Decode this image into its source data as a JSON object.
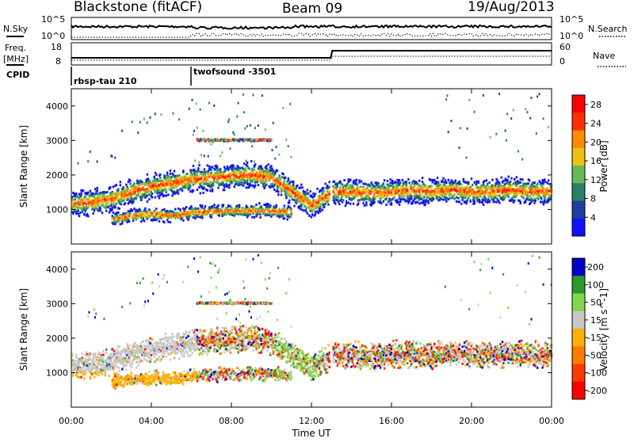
{
  "header": {
    "station": "Blackstone (fitACF)",
    "beam": "Beam 09",
    "date": "19/Aug/2013"
  },
  "top_panels": {
    "nsky_label": "N.Sky",
    "nsearch_label": "N.Search",
    "freq_label": "Freq.",
    "freq_unit": "[MHz]",
    "nave_label": "Nave",
    "cpid_label": "CPID",
    "noise_ticks": [
      "10^5",
      "10^0"
    ],
    "noise_right_ticks": [
      "10^5",
      "10^0"
    ],
    "freq_ticks": [
      "18",
      "8"
    ],
    "nave_ticks": [
      "60",
      "0"
    ],
    "cpid_segments": [
      {
        "label": "rbsp-tau 210",
        "start_hour": 0.0
      },
      {
        "label": "twofsound -3501",
        "start_hour": 6.0
      }
    ]
  },
  "chart_data": [
    {
      "type": "heatmap",
      "title": "",
      "xlabel": "Time UT",
      "ylabel": "Slant Range [km]",
      "xlim_hours": [
        0,
        24
      ],
      "x_ticks": [
        "00:00",
        "04:00",
        "08:00",
        "12:00",
        "16:00",
        "20:00",
        "00:00"
      ],
      "ylim": [
        0,
        4500
      ],
      "y_ticks": [
        1000,
        2000,
        3000,
        4000
      ],
      "colorbar": {
        "label": "Power [dB]",
        "ticks": [
          4,
          8,
          12,
          16,
          20,
          24,
          28
        ],
        "range": [
          0,
          30
        ],
        "colors": [
          "#1010ff",
          "#1e3fa0",
          "#2a7f6a",
          "#66bb55",
          "#f0c010",
          "#ff8a00",
          "#ff3000",
          "#ff0000"
        ]
      },
      "bands": [
        {
          "series": "main band",
          "x_hours": [
            0,
            1,
            2,
            3,
            4,
            5,
            6,
            7,
            8,
            9,
            10,
            11,
            12,
            13,
            14,
            15,
            16,
            17,
            18,
            19,
            20,
            21,
            22,
            23,
            24
          ],
          "center_km": [
            1150,
            1200,
            1300,
            1500,
            1650,
            1750,
            1850,
            1900,
            1950,
            2000,
            1900,
            1500,
            1100,
            1500,
            1500,
            1450,
            1500,
            1550,
            1500,
            1550,
            1500,
            1500,
            1550,
            1500,
            1500
          ]
        },
        {
          "series": "lower band",
          "x_hours": [
            2,
            3,
            4,
            5,
            6,
            8,
            10,
            11
          ],
          "center_km": [
            700,
            800,
            850,
            800,
            900,
            950,
            950,
            900
          ]
        },
        {
          "series": "3000 km line",
          "x_hours": [
            6.2,
            10.0
          ],
          "center_km": [
            3000,
            3000
          ]
        }
      ]
    },
    {
      "type": "heatmap",
      "title": "",
      "xlabel": "Time UT",
      "ylabel": "Slant Range [km]",
      "xlim_hours": [
        0,
        24
      ],
      "x_ticks": [
        "00:00",
        "04:00",
        "08:00",
        "12:00",
        "16:00",
        "20:00",
        "00:00"
      ],
      "ylim": [
        0,
        4500
      ],
      "y_ticks": [
        1000,
        2000,
        3000,
        4000
      ],
      "colorbar": {
        "label": "Velocity [m s^-1]",
        "ticks": [
          200,
          100,
          50,
          15,
          -15,
          -50,
          -100,
          -200
        ],
        "range": [
          -250,
          250
        ],
        "colors": [
          "#0000c8",
          "#2a9a2a",
          "#7ed84a",
          "#c8c8c8",
          "#ffb000",
          "#ff7a00",
          "#ff3a00",
          "#ff0000"
        ]
      }
    }
  ]
}
